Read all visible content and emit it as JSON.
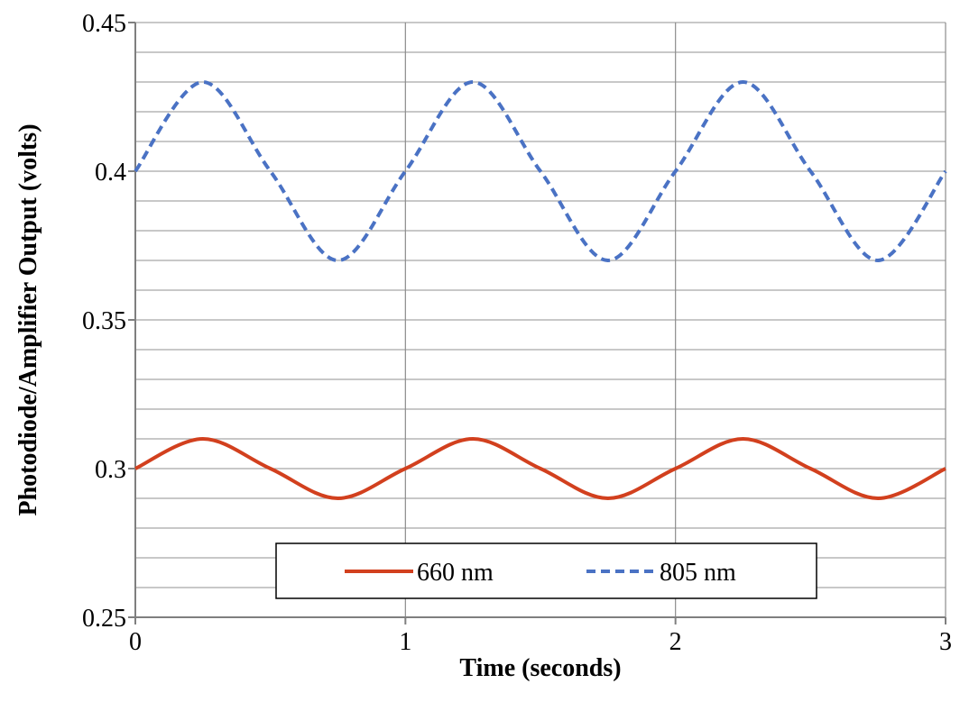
{
  "chart_data": {
    "type": "line",
    "title": "",
    "xlabel": "Time (seconds)",
    "ylabel": "Photodiode/Amplifier Output (volts)",
    "xlim": [
      0,
      3
    ],
    "ylim": [
      0.25,
      0.45
    ],
    "x_ticks": [
      0,
      1,
      2,
      3
    ],
    "x_tick_labels": [
      "0",
      "1",
      "2",
      "3"
    ],
    "y_ticks": [
      0.25,
      0.3,
      0.35,
      0.4,
      0.45
    ],
    "y_tick_labels": [
      "0.25",
      "0.3",
      "0.35",
      "0.4",
      "0.45"
    ],
    "major_grid_y_step": 0.01,
    "major_grid_x_step": 1,
    "legend_placement": "bottom-center",
    "x": [
      0,
      0.25,
      0.5,
      0.75,
      1,
      1.25,
      1.5,
      1.75,
      2,
      2.25,
      2.5,
      2.75,
      3
    ],
    "series": [
      {
        "name": "660 nm",
        "color": "#d2401e",
        "style": "solid",
        "values": [
          0.3,
          0.31,
          0.3,
          0.29,
          0.3,
          0.31,
          0.3,
          0.29,
          0.3,
          0.31,
          0.3,
          0.29,
          0.3
        ]
      },
      {
        "name": "805 nm",
        "color": "#4a72c4",
        "style": "dashed",
        "values": [
          0.4,
          0.43,
          0.4,
          0.37,
          0.4,
          0.43,
          0.4,
          0.37,
          0.4,
          0.43,
          0.4,
          0.37,
          0.4
        ]
      }
    ]
  }
}
